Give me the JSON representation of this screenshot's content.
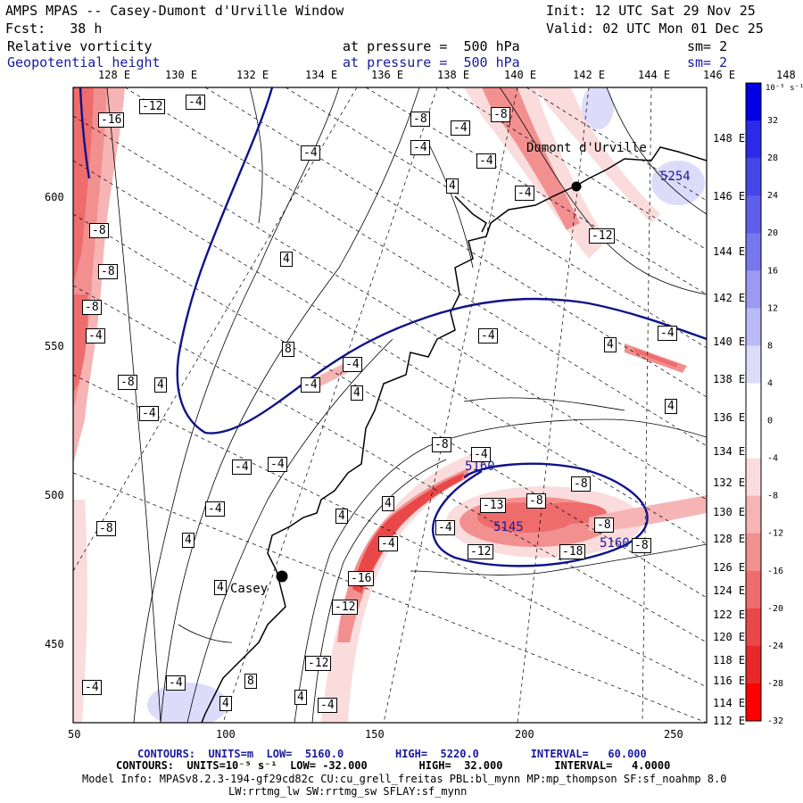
{
  "header": {
    "title": "AMPS MPAS -- Casey-Dumont d'Urville Window",
    "init": "Init: 12 UTC Sat 29 Nov 25",
    "fcst": "Fcst:   38 h",
    "valid": "Valid: 02 UTC Mon 01 Dec 25",
    "field1": "Relative vorticity",
    "field1_pressure": "at pressure =  500 hPa",
    "field1_sm": "sm= 2",
    "field2": "Geopotential height",
    "field2_pressure": "at pressure =  500 hPa",
    "field2_sm": "sm= 2"
  },
  "top_lon_labels": [
    "128 E",
    "130 E",
    "132 E",
    "134 E",
    "136 E",
    "138 E",
    "140 E",
    "142 E",
    "144 E",
    "146 E",
    "148 E"
  ],
  "right_lon_labels": [
    "148 E",
    "146 E",
    "144 E",
    "142 E",
    "140 E",
    "138 E",
    "136 E",
    "134 E",
    "132 E",
    "130 E",
    "128 E",
    "126 E",
    "124 E",
    "122 E",
    "120 E",
    "118 E",
    "116 E",
    "114 E",
    "112 E"
  ],
  "x_axis": [
    "50",
    "100",
    "150",
    "200",
    "250"
  ],
  "y_axis": [
    "600",
    "550",
    "500",
    "450"
  ],
  "colorbar": {
    "unit_label": "10⁻⁵ s⁻¹",
    "labels": [
      "32",
      "28",
      "24",
      "20",
      "16",
      "12",
      "8",
      "4",
      "0",
      "-4",
      "-8",
      "-12",
      "-16",
      "-20",
      "-24",
      "-28",
      "-32"
    ],
    "colors": [
      "#0000e6",
      "#2a2ae8",
      "#4646e8",
      "#5e5eea",
      "#7878ee",
      "#9a9af2",
      "#babaf6",
      "#dcdcfa",
      "#ffffff",
      "#ffffff",
      "#fadcdc",
      "#f6b4b4",
      "#f29090",
      "#ee6c6c",
      "#ea4848",
      "#e82828",
      "#ff0000"
    ]
  },
  "stations": [
    {
      "name": "Dumont d'Urville"
    },
    {
      "name": "Casey"
    }
  ],
  "height_labels": [
    "5254",
    "5160",
    "5145",
    "5160"
  ],
  "vort_labels": [
    "-16",
    "-12",
    "-4",
    "-8",
    "-4",
    "-8",
    "-4",
    "-4",
    "-4",
    "4",
    "-4",
    "-12",
    "-8",
    "-8",
    "4",
    "-8",
    "-4",
    "8",
    "-4",
    "-4",
    "4",
    "-4",
    "-4",
    "-8",
    "4",
    "4",
    "-4",
    "4",
    "-4",
    "-4",
    "-8",
    "-4",
    "-8",
    "-4",
    "4",
    "-8",
    "4",
    "4",
    "-4",
    "-13",
    "-8",
    "-18",
    "-12",
    "-4",
    "-8",
    "-8",
    "-16",
    "4",
    "-12",
    "-12",
    "-4",
    "-4",
    "8",
    "4",
    "4",
    "-4"
  ],
  "footer": {
    "line1_label": "CONTOURS:  UNITS=m  LOW=  5160.0        HIGH=  5220.0        INTERVAL=   60.000",
    "line2_label": "CONTOURS:  UNITS=10⁻⁵ s⁻¹  LOW= -32.000        HIGH=  32.000        INTERVAL=   4.0000",
    "line3": "Model Info: MPASv8.2.3-194-gf29cd82c CU:cu_grell_freitas PBL:bl_mynn MP:mp_thompson SF:sf_noahmp 8.0",
    "line4": "LW:rrtmg_lw SW:rrtmg_sw SFLAY:sf_mynn"
  }
}
